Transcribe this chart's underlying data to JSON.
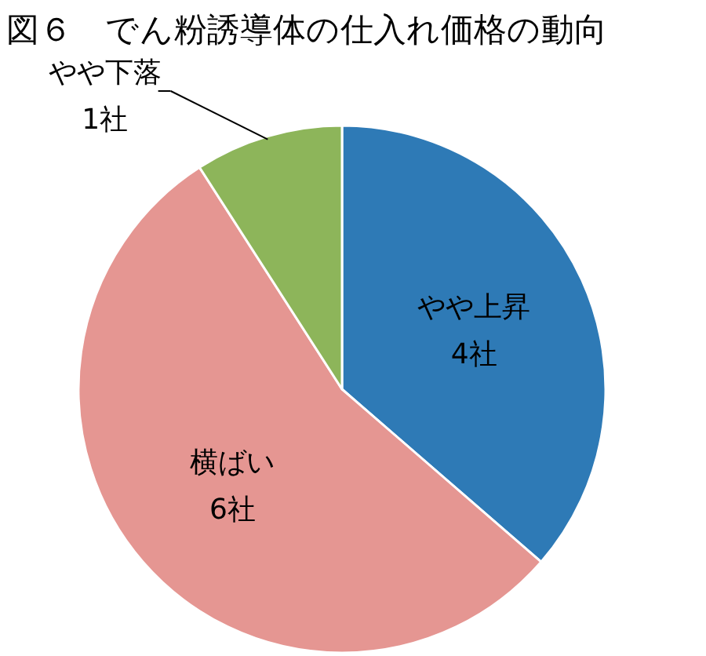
{
  "chart_data": {
    "type": "pie",
    "title": "図６　でん粉誘導体の仕入れ価格の動向",
    "categories": [
      "やや上昇",
      "横ばい",
      "やや下落"
    ],
    "values": [
      4,
      6,
      1
    ],
    "value_labels": [
      "4社",
      "6社",
      "1社"
    ],
    "colors": [
      "#2e7ab6",
      "#e59692",
      "#8db55a"
    ]
  }
}
